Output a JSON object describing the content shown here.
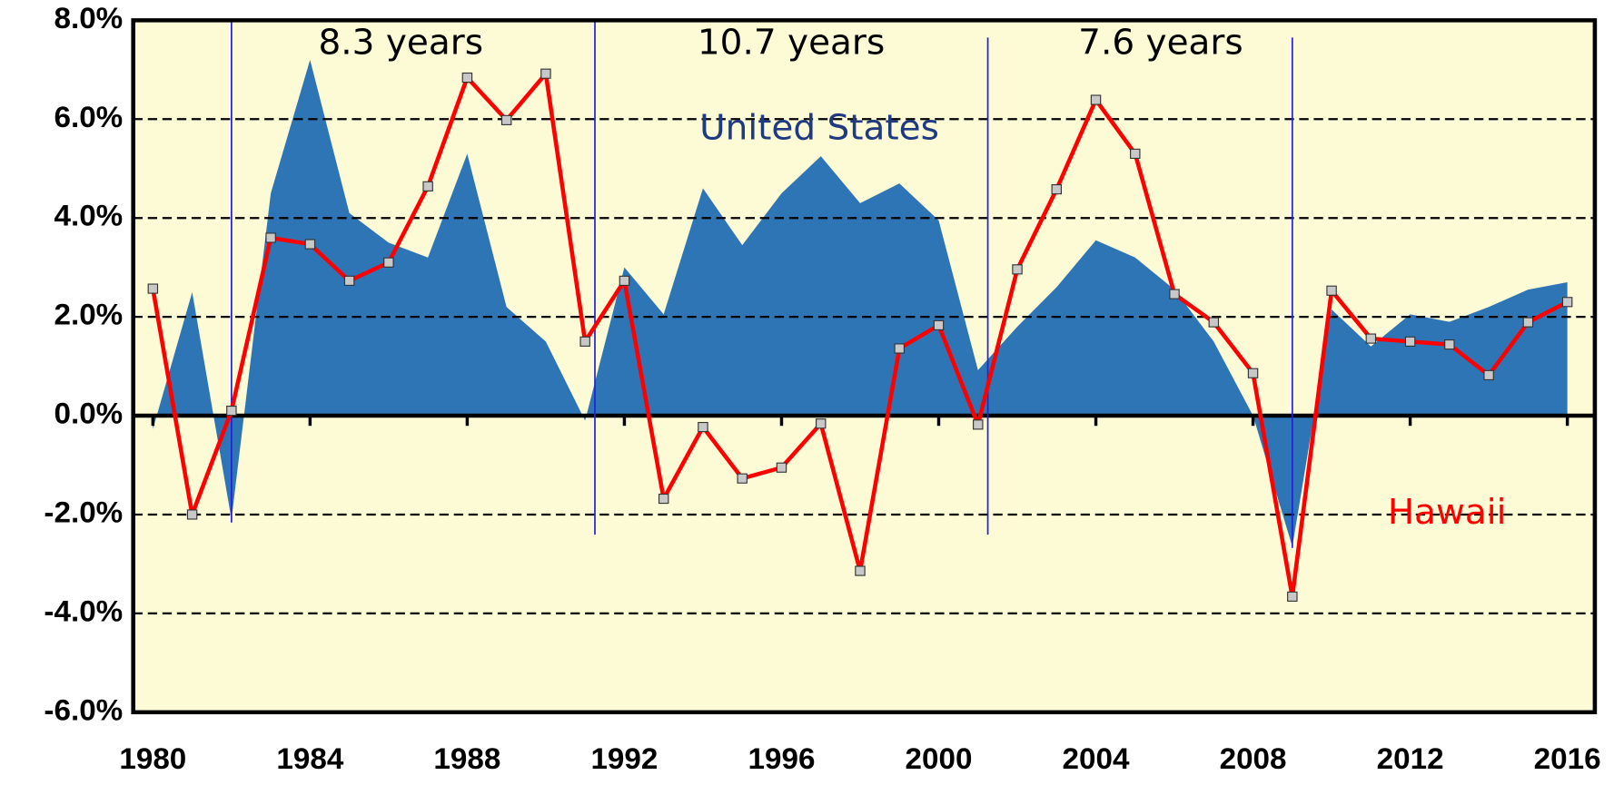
{
  "chart_data": {
    "type": "line",
    "x": [
      1980,
      1981,
      1982,
      1983,
      1984,
      1985,
      1986,
      1987,
      1988,
      1989,
      1990,
      1991,
      1992,
      1993,
      1994,
      1995,
      1996,
      1997,
      1998,
      1999,
      2000,
      2001,
      2002,
      2003,
      2004,
      2005,
      2006,
      2007,
      2008,
      2009,
      2010,
      2011,
      2012,
      2013,
      2014,
      2015,
      2016
    ],
    "series": [
      {
        "name": "United States",
        "kind": "area",
        "color": "#2e75b6",
        "label_color": "#1f3a80",
        "values": [
          -0.27,
          2.5,
          -2.1,
          4.5,
          7.2,
          4.1,
          3.5,
          3.2,
          5.3,
          2.2,
          1.5,
          -0.1,
          3.0,
          2.05,
          4.6,
          3.45,
          4.5,
          5.25,
          4.3,
          4.7,
          3.95,
          0.92,
          1.8,
          2.6,
          3.55,
          3.2,
          2.55,
          1.5,
          0.0,
          -2.65,
          2.15,
          1.4,
          2.05,
          1.9,
          2.2,
          2.55,
          2.7
        ]
      },
      {
        "name": "Hawaii",
        "kind": "line",
        "color": "#ff0000",
        "label_color": "#ff0000",
        "values": [
          2.57,
          -2.0,
          0.1,
          3.6,
          3.47,
          2.73,
          3.1,
          4.64,
          6.84,
          5.98,
          6.92,
          1.5,
          2.73,
          -1.68,
          -0.23,
          -1.27,
          -1.05,
          -0.16,
          -3.14,
          1.36,
          1.83,
          -0.18,
          2.96,
          4.58,
          6.39,
          5.3,
          2.46,
          1.89,
          0.86,
          -3.66,
          2.53,
          1.56,
          1.5,
          1.44,
          0.82,
          1.89,
          2.3
        ]
      }
    ],
    "annotations": [
      "8.3 years",
      "10.7 years",
      "7.6 years"
    ],
    "vlines": [
      1982,
      1991.25,
      2001.25,
      2009
    ],
    "xlim": [
      1979.5,
      2016.7
    ],
    "xticks": [
      1980,
      1984,
      1988,
      1992,
      1996,
      2000,
      2004,
      2008,
      2012,
      2016
    ],
    "ylim": [
      -6,
      8
    ],
    "yticks": [
      {
        "value": -6,
        "label": "-6.0%"
      },
      {
        "value": -4,
        "label": "-4.0%"
      },
      {
        "value": -2,
        "label": "-2.0%"
      },
      {
        "value": 0,
        "label": "0.0%"
      },
      {
        "value": 2,
        "label": "2.0%"
      },
      {
        "value": 4,
        "label": "4.0%"
      },
      {
        "value": 6,
        "label": "6.0%"
      },
      {
        "value": 8,
        "label": "8.0%"
      }
    ],
    "grid": true
  }
}
